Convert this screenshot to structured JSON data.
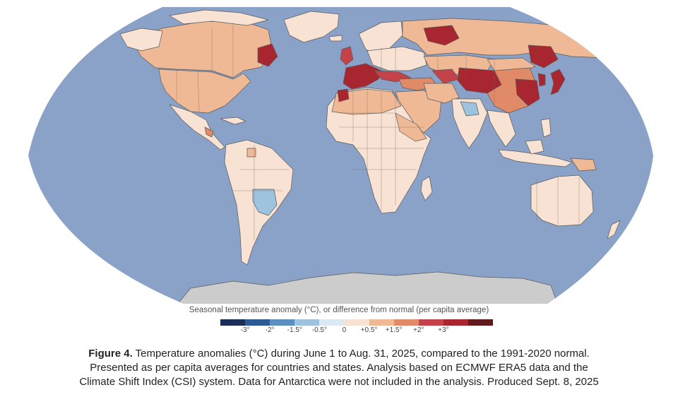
{
  "legend": {
    "title": "Seasonal temperature anomaly (°C), or difference from normal (per capita average)",
    "colors": [
      "#1b2e57",
      "#2b5a94",
      "#5b8fc0",
      "#9dc3df",
      "#dbe9f3",
      "#f7e2d3",
      "#efb996",
      "#e08a68",
      "#c4424a",
      "#a7262f",
      "#621a1a"
    ],
    "ticks": [
      "-3°",
      "-2°",
      "-1.5°",
      "-0.5°",
      "0",
      "+0.5°",
      "+1.5°",
      "+2°",
      "+3°"
    ]
  },
  "caption": {
    "label": "Figure 4.",
    "line1": " Temperature anomalies (°C) during June 1 to Aug. 31, 2025, compared to the 1991-2020 normal.",
    "line2": "Presented as per capita averages for countries and states. Analysis based on ECMWF ERA5 data and the",
    "line3": "Climate Shift Index (CSI) system. Data for Antarctica were not included in the analysis. Produced Sept. 8, 2025"
  },
  "map_colors": {
    "ocean": "#8aa2c8",
    "antarctica": "#cccccc",
    "near_zero": "#f7e2d3",
    "slight_warm": "#efb996",
    "warm": "#e08a68",
    "hot": "#c4424a",
    "very_hot": "#a7262f",
    "cool": "#9dc3df",
    "neutral": "#f3ece6"
  }
}
